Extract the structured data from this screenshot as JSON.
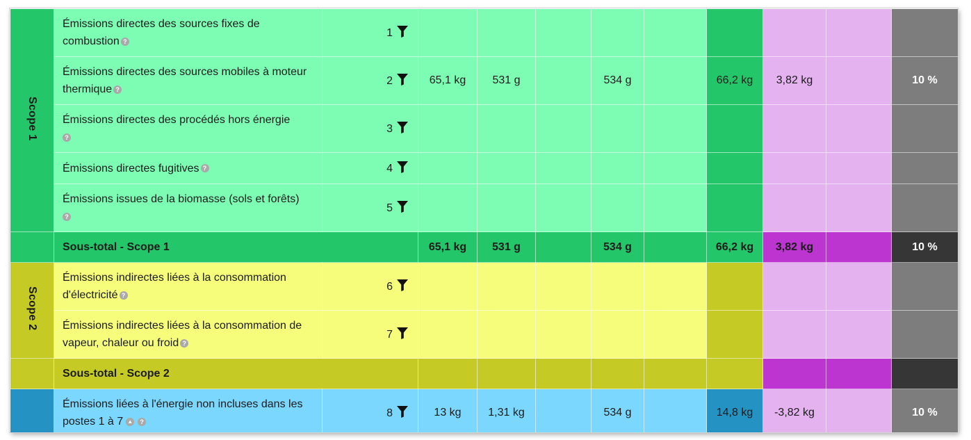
{
  "scope1": {
    "label": "Scope 1",
    "rows": [
      {
        "label": "Émissions directes des sources fixes de combustion",
        "num": "1",
        "v1": "",
        "v2": "",
        "v3": "",
        "v4": "",
        "v5": "",
        "total": "",
        "p1": "",
        "p2": "",
        "pct": ""
      },
      {
        "label": "Émissions directes des sources mobiles à moteur thermique",
        "num": "2",
        "v1": "65,1 kg",
        "v2": "531 g",
        "v3": "",
        "v4": "534 g",
        "v5": "",
        "total": "66,2 kg",
        "p1": "3,82 kg",
        "p2": "",
        "pct": "10 %"
      },
      {
        "label": "Émissions directes des procédés hors énergie",
        "num": "3",
        "v1": "",
        "v2": "",
        "v3": "",
        "v4": "",
        "v5": "",
        "total": "",
        "p1": "",
        "p2": "",
        "pct": ""
      },
      {
        "label": "Émissions directes fugitives",
        "num": "4",
        "v1": "",
        "v2": "",
        "v3": "",
        "v4": "",
        "v5": "",
        "total": "",
        "p1": "",
        "p2": "",
        "pct": ""
      },
      {
        "label": "Émissions issues de la biomasse (sols et forêts)",
        "num": "5",
        "v1": "",
        "v2": "",
        "v3": "",
        "v4": "",
        "v5": "",
        "total": "",
        "p1": "",
        "p2": "",
        "pct": ""
      }
    ],
    "subtotal": {
      "label": "Sous-total -  Scope 1",
      "v1": "65,1 kg",
      "v2": "531 g",
      "v3": "",
      "v4": "534 g",
      "v5": "",
      "total": "66,2 kg",
      "p1": "3,82 kg",
      "p2": "",
      "pct": "10 %"
    }
  },
  "scope2": {
    "label": "Scope 2",
    "rows": [
      {
        "label": "Émissions indirectes liées à la consommation d'électricité",
        "num": "6",
        "v1": "",
        "v2": "",
        "v3": "",
        "v4": "",
        "v5": "",
        "total": "",
        "p1": "",
        "p2": "",
        "pct": ""
      },
      {
        "label": "Émissions indirectes liées à la consommation de vapeur, chaleur ou froid",
        "num": "7",
        "v1": "",
        "v2": "",
        "v3": "",
        "v4": "",
        "v5": "",
        "total": "",
        "p1": "",
        "p2": "",
        "pct": ""
      }
    ],
    "subtotal": {
      "label": "Sous-total -  Scope 2",
      "v1": "",
      "v2": "",
      "v3": "",
      "v4": "",
      "v5": "",
      "total": "",
      "p1": "",
      "p2": "",
      "pct": ""
    }
  },
  "scope3": {
    "rows": [
      {
        "label": "Émissions liées à l'énergie non incluses dans les postes 1 à 7",
        "num": "8",
        "v1": "13 kg",
        "v2": "1,31 kg",
        "v3": "",
        "v4": "534 g",
        "v5": "",
        "total": "14,8 kg",
        "p1": "-3,82 kg",
        "p2": "",
        "pct": "10 %"
      }
    ]
  },
  "icons": {
    "help": "question-circle-icon",
    "filter": "filter-icon",
    "up": "arrow-up-circle-icon"
  },
  "colors": {
    "scope1_light": "#7dfdb4",
    "scope1_dark": "#24c66a",
    "scope2_light": "#f6fd7b",
    "scope2_dark": "#c5cb24",
    "scope3_light": "#7bd7fd",
    "scope3_dark": "#2492c3",
    "pink_light": "#e3b2ef",
    "pink_dark": "#bc35d0",
    "gray_light": "#7d7d7d",
    "gray_dark": "#363636"
  }
}
